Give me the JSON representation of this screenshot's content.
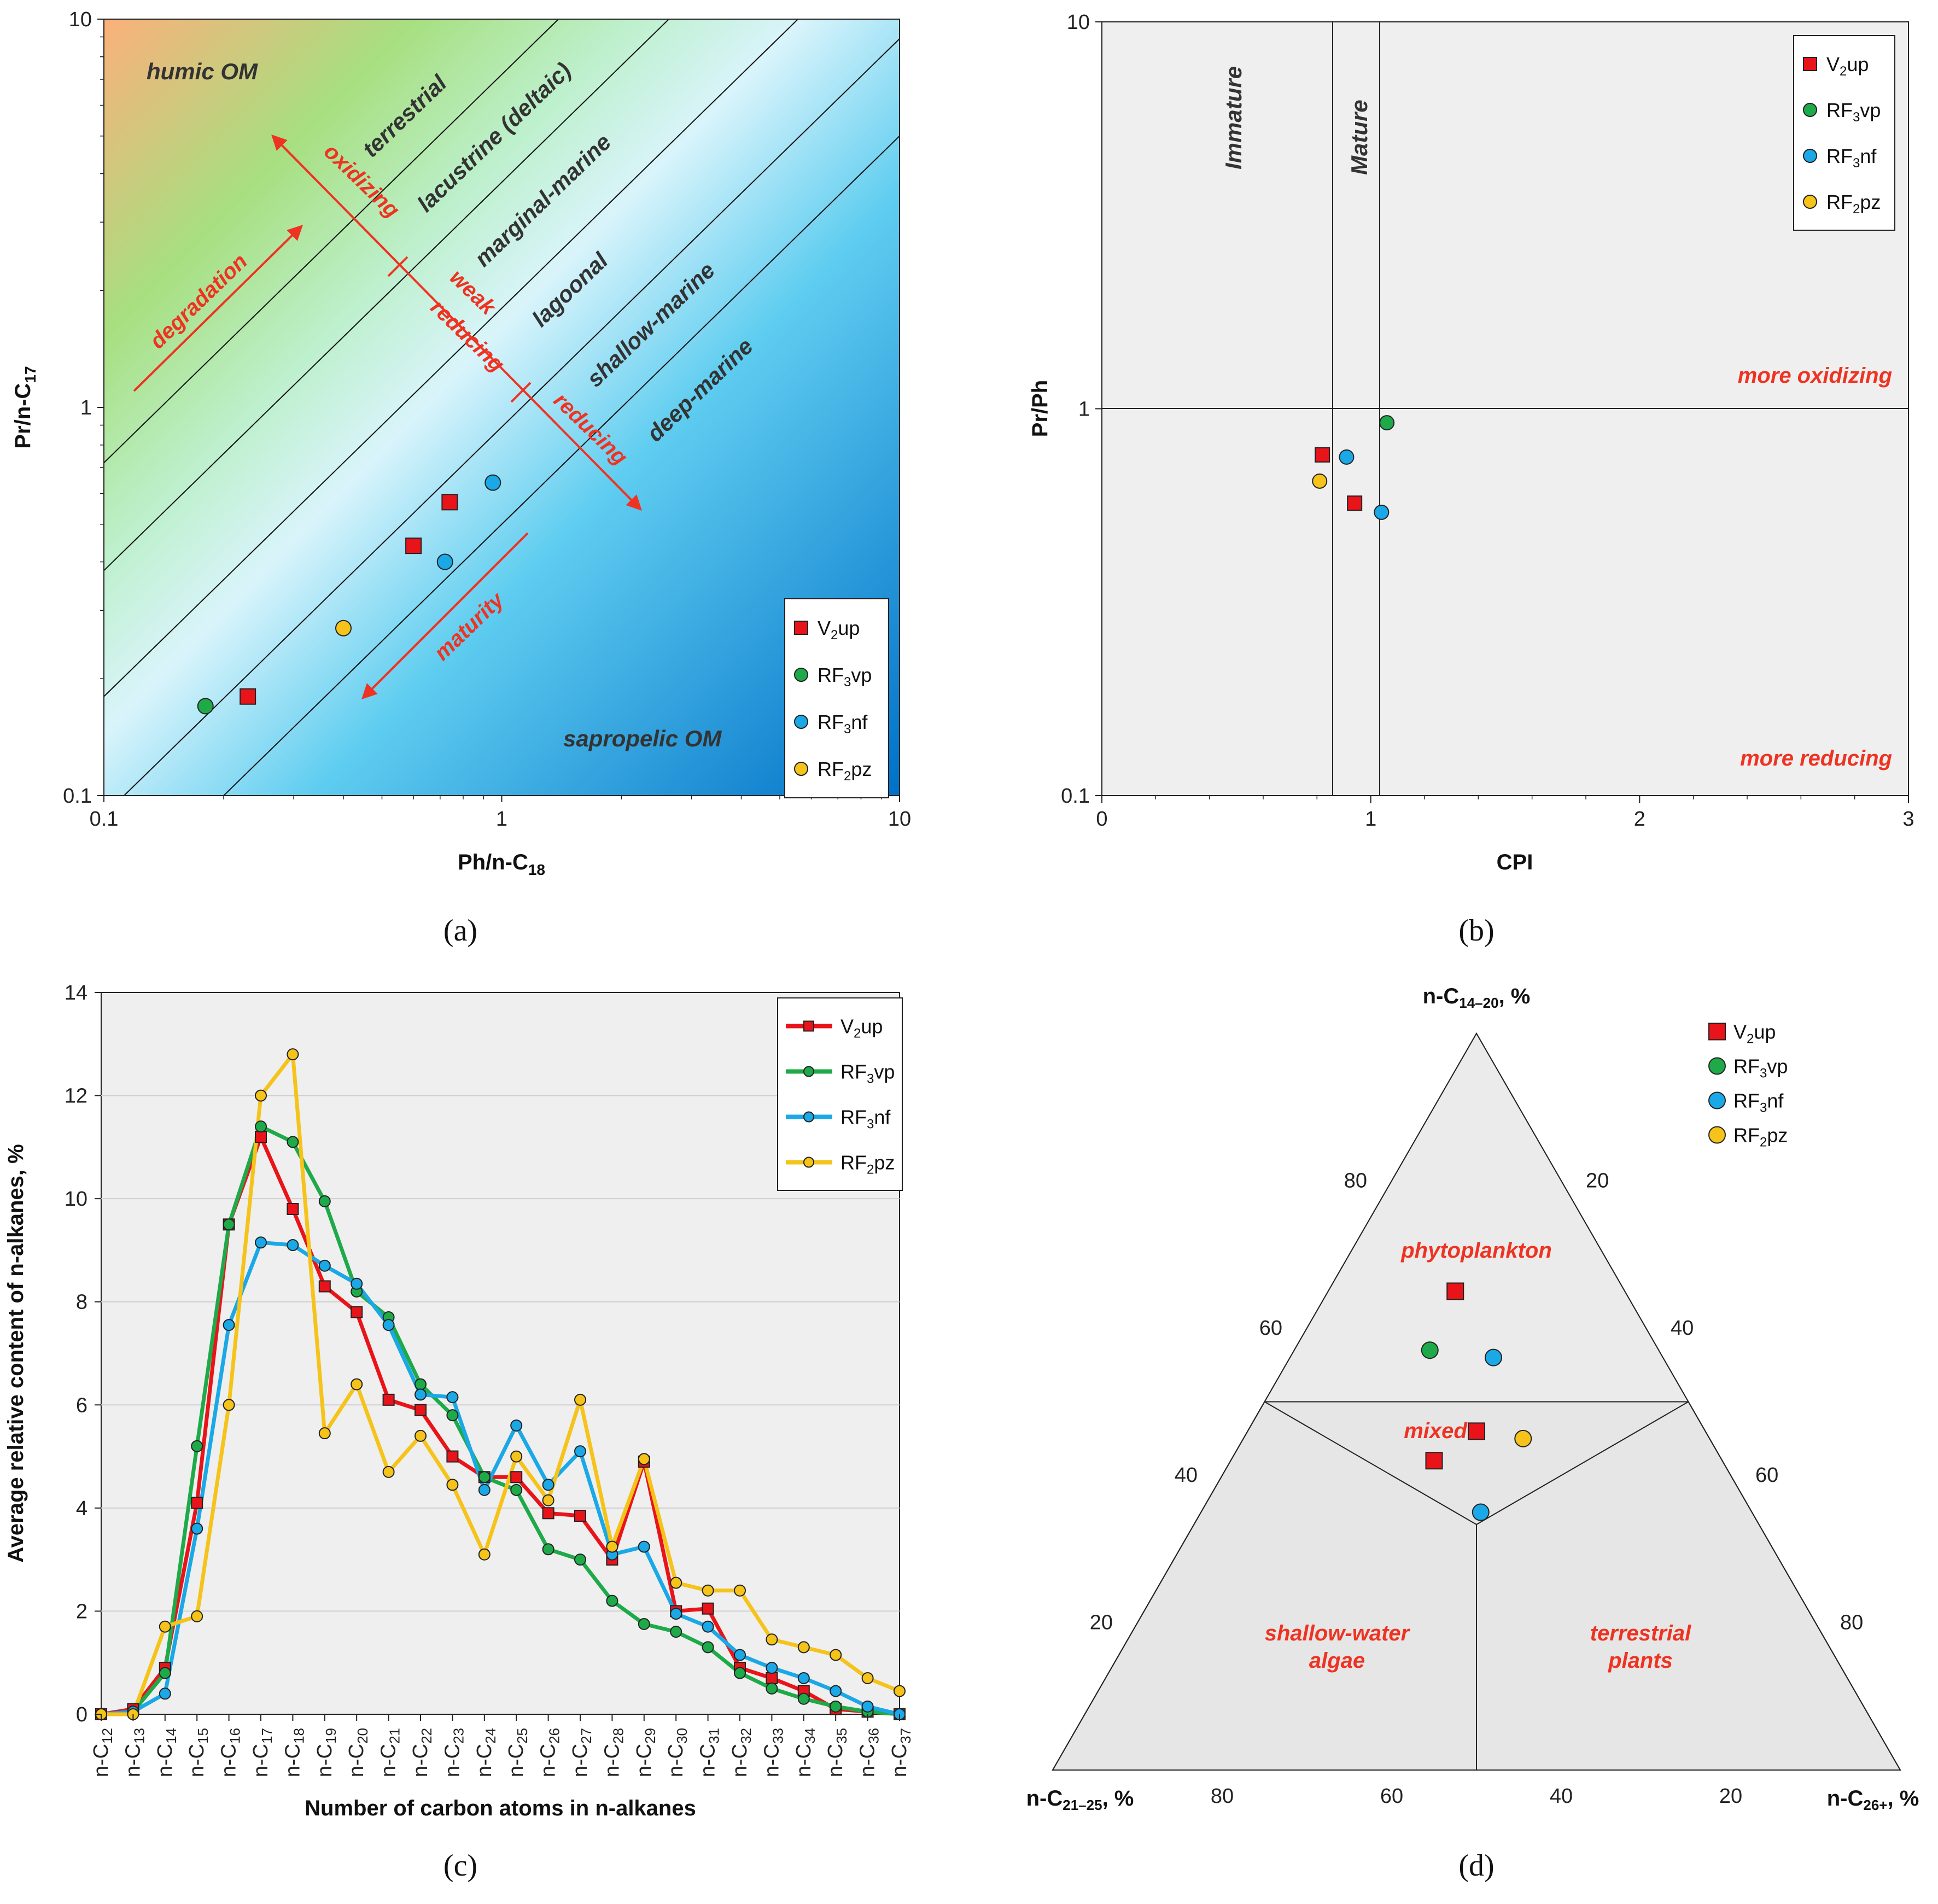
{
  "colors": {
    "V2up": "#e8141a",
    "RF3vp": "#1faa4a",
    "RF3nf": "#1aa8e6",
    "RF2pz": "#f5c31a",
    "annotation": "#ee3322"
  },
  "legend": [
    {
      "key": "V2up",
      "base": "V",
      "sub": "2",
      "rest": "up",
      "marker": "square"
    },
    {
      "key": "RF3vp",
      "base": "RF",
      "sub": "3",
      "rest": "vp",
      "marker": "circle"
    },
    {
      "key": "RF3nf",
      "base": "RF",
      "sub": "3",
      "rest": "nf",
      "marker": "circle"
    },
    {
      "key": "RF2pz",
      "base": "RF",
      "sub": "2",
      "rest": "pz",
      "marker": "circle"
    }
  ],
  "captions": {
    "a": "(a)",
    "b": "(b)",
    "c": "(c)",
    "d": "(d)"
  },
  "chart_data": [
    {
      "id": "a",
      "type": "scatter",
      "scale": "log-log",
      "xlabel": "Ph/n-C",
      "xlabel_sub": "18",
      "ylabel": "Pr/n-C",
      "ylabel_sub": "17",
      "xlim": [
        0.1,
        10
      ],
      "ylim": [
        0.1,
        10
      ],
      "x_ticks": [
        "0.1",
        "1",
        "10"
      ],
      "y_ticks": [
        "0.1",
        "1",
        "10"
      ],
      "zones": [
        "humic OM",
        "terrestrial",
        "lacustrine (deltaic)",
        "marginal-marine",
        "lagoonal",
        "shallow-marine",
        "deep-marine",
        "sapropelic OM"
      ],
      "annotations": [
        "degradation",
        "oxidizing",
        "weak",
        "reducing",
        "reducing",
        "maturity"
      ],
      "boundary_lines_ratio": [
        7.2,
        3.8,
        1.8,
        0.89,
        0.5
      ],
      "series": [
        {
          "key": "V2up",
          "points": [
            [
              0.23,
              0.18
            ],
            [
              0.6,
              0.44
            ],
            [
              0.74,
              0.57
            ]
          ]
        },
        {
          "key": "RF3vp",
          "points": [
            [
              0.18,
              0.17
            ]
          ]
        },
        {
          "key": "RF3nf",
          "points": [
            [
              0.72,
              0.4
            ],
            [
              0.95,
              0.64
            ]
          ]
        },
        {
          "key": "RF2pz",
          "points": [
            [
              0.4,
              0.27
            ]
          ]
        }
      ]
    },
    {
      "id": "b",
      "type": "scatter",
      "scale": "semilog-y",
      "xlabel": "CPI",
      "ylabel": "Pr/Ph",
      "xlim": [
        0,
        3
      ],
      "ylim": [
        0.1,
        10
      ],
      "x_ticks": [
        "0",
        "1",
        "2",
        "3"
      ],
      "y_ticks": [
        "0.1",
        "1",
        "10"
      ],
      "zones": [
        "Immature",
        "Mature"
      ],
      "annotations": [
        "more oxidizing",
        "more reducing"
      ],
      "series": [
        {
          "key": "V2up",
          "points": [
            [
              0.82,
              0.76
            ],
            [
              0.94,
              0.57
            ]
          ]
        },
        {
          "key": "RF3vp",
          "points": [
            [
              1.06,
              0.92
            ]
          ]
        },
        {
          "key": "RF3nf",
          "points": [
            [
              0.91,
              0.75
            ],
            [
              1.04,
              0.54
            ]
          ]
        },
        {
          "key": "RF2pz",
          "points": [
            [
              0.81,
              0.65
            ]
          ]
        }
      ]
    },
    {
      "id": "c",
      "type": "line",
      "xlabel": "Number of carbon atoms in n-alkanes",
      "ylabel": "Average relative content of n-alkanes, %",
      "ylim": [
        0,
        14
      ],
      "y_ticks": [
        "0",
        "2",
        "4",
        "6",
        "8",
        "10",
        "12",
        "14"
      ],
      "category_prefix": "n-C",
      "categories": [
        "12",
        "13",
        "14",
        "15",
        "16",
        "17",
        "18",
        "19",
        "20",
        "21",
        "22",
        "23",
        "24",
        "25",
        "26",
        "27",
        "28",
        "29",
        "30",
        "31",
        "32",
        "33",
        "34",
        "35",
        "36",
        "37"
      ],
      "series": [
        {
          "key": "V2up",
          "values": [
            0,
            0.1,
            0.9,
            4.1,
            9.5,
            11.2,
            9.8,
            8.3,
            7.8,
            6.1,
            5.9,
            5.0,
            4.6,
            4.6,
            3.9,
            3.85,
            3.0,
            4.9,
            2.0,
            2.05,
            0.9,
            0.7,
            0.45,
            0.1,
            0.05,
            0
          ]
        },
        {
          "key": "RF3vp",
          "values": [
            0,
            0.05,
            0.8,
            5.2,
            9.5,
            11.4,
            11.1,
            9.95,
            8.2,
            7.7,
            6.4,
            5.8,
            4.6,
            4.35,
            3.2,
            3.0,
            2.2,
            1.75,
            1.6,
            1.3,
            0.8,
            0.5,
            0.3,
            0.15,
            0.05,
            0
          ]
        },
        {
          "key": "RF3nf",
          "values": [
            0,
            0.05,
            0.4,
            3.6,
            7.55,
            9.15,
            9.1,
            8.7,
            8.35,
            7.55,
            6.2,
            6.15,
            4.35,
            5.6,
            4.45,
            5.1,
            3.1,
            3.25,
            1.95,
            1.7,
            1.15,
            0.9,
            0.7,
            0.45,
            0.15,
            0
          ]
        },
        {
          "key": "RF2pz",
          "values": [
            0,
            0,
            1.7,
            1.9,
            6.0,
            12.0,
            12.8,
            5.45,
            6.4,
            4.7,
            5.4,
            4.45,
            3.1,
            5.0,
            4.15,
            6.1,
            3.25,
            4.95,
            2.55,
            2.4,
            2.4,
            1.45,
            1.3,
            1.15,
            0.7,
            0.45
          ]
        }
      ]
    },
    {
      "id": "d",
      "type": "ternary",
      "vertices": {
        "top": "n-C",
        "top_sub": "14–20",
        "left": "n-C",
        "left_sub": "21–25",
        "right": "n-C",
        "right_sub": "26+",
        "suffix": ", %"
      },
      "ticks": [
        "20",
        "40",
        "60",
        "80"
      ],
      "zones": [
        "phytoplankton",
        "mixed",
        "shallow-water",
        "algae",
        "terrestrial",
        "plants"
      ],
      "series": [
        {
          "key": "V2up",
          "points": [
            [
              65,
              20,
              15
            ],
            [
              46,
              27,
              27
            ],
            [
              42,
              34,
              24
            ]
          ]
        },
        {
          "key": "RF3vp",
          "points": [
            [
              57,
              27,
              16
            ]
          ]
        },
        {
          "key": "RF3nf",
          "points": [
            [
              56,
              20,
              24
            ],
            [
              35,
              32,
              33
            ]
          ]
        },
        {
          "key": "RF2pz",
          "points": [
            [
              45,
              22,
              33
            ]
          ]
        }
      ]
    }
  ]
}
